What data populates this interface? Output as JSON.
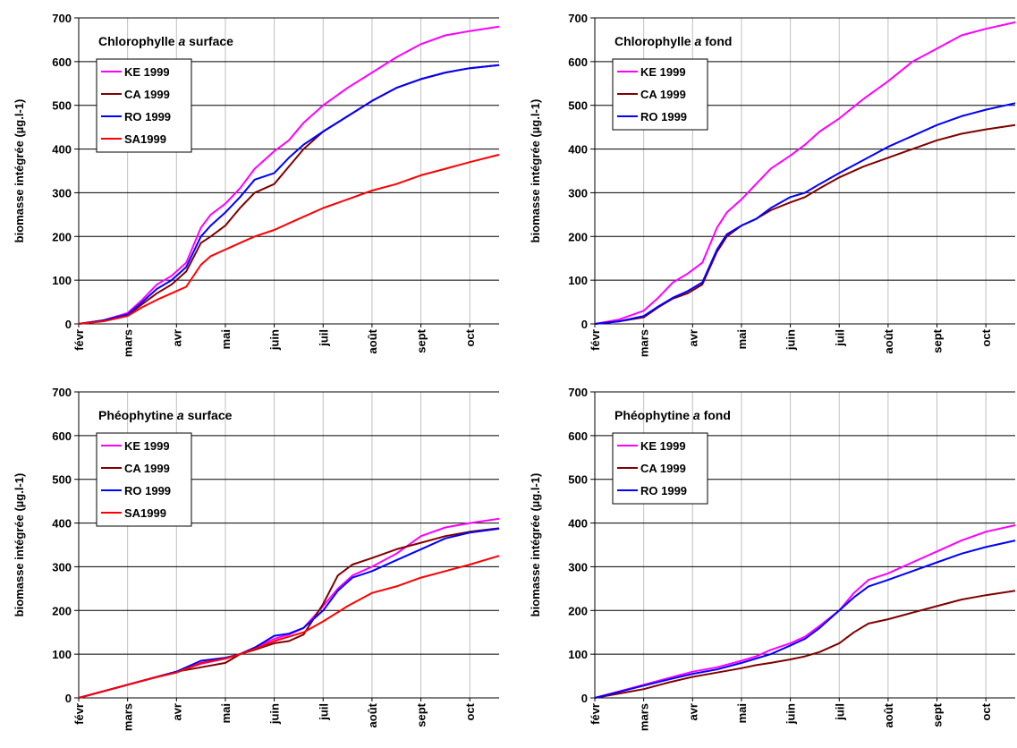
{
  "chart_data": [
    {
      "type": "line",
      "title_prefix": "Chlorophylle ",
      "title_italic": "a",
      "title_suffix": " surface",
      "ylabel": "biomasse intégrée (µg.l-1)",
      "ylim": [
        0,
        700
      ],
      "yticks": [
        0,
        100,
        200,
        300,
        400,
        500,
        600,
        700
      ],
      "xlim": [
        0,
        8.6
      ],
      "categories": [
        "févr",
        "mars",
        "avr",
        "mai",
        "juin",
        "juil",
        "août",
        "sept",
        "oct"
      ],
      "legend_position": "top-left",
      "series": [
        {
          "name": "KE 1999",
          "color": "#ff00ff",
          "x": [
            0,
            0.5,
            1,
            1.3,
            1.6,
            1.9,
            2.2,
            2.5,
            2.7,
            3,
            3.3,
            3.6,
            4,
            4.3,
            4.6,
            5,
            5.5,
            6,
            6.5,
            7,
            7.5,
            8,
            8.6
          ],
          "values": [
            0,
            8,
            25,
            55,
            90,
            110,
            140,
            220,
            250,
            275,
            310,
            355,
            395,
            420,
            460,
            500,
            540,
            575,
            610,
            640,
            660,
            670,
            680
          ]
        },
        {
          "name": "CA 1999",
          "color": "#800000",
          "x": [
            0,
            0.5,
            1,
            1.3,
            1.6,
            1.9,
            2.2,
            2.5,
            2.7,
            3,
            3.3,
            3.6,
            4,
            4.3,
            4.6,
            5,
            5.5,
            6,
            6.5,
            7,
            7.5,
            8,
            8.6
          ],
          "values": [
            0,
            8,
            20,
            45,
            70,
            90,
            120,
            185,
            200,
            225,
            265,
            300,
            320,
            360,
            400,
            440,
            475,
            510,
            540,
            560,
            575,
            585,
            592
          ]
        },
        {
          "name": "RO 1999",
          "color": "#0000ff",
          "x": [
            0,
            0.5,
            1,
            1.3,
            1.6,
            1.9,
            2.2,
            2.5,
            2.7,
            3,
            3.3,
            3.6,
            4,
            4.3,
            4.6,
            5,
            5.5,
            6,
            6.5,
            7,
            7.5,
            8,
            8.6
          ],
          "values": [
            0,
            8,
            22,
            50,
            80,
            100,
            130,
            200,
            225,
            255,
            290,
            330,
            345,
            380,
            410,
            440,
            475,
            510,
            540,
            560,
            575,
            585,
            592
          ]
        },
        {
          "name": "SA1999",
          "color": "#ff0000",
          "x": [
            0,
            0.5,
            1,
            1.3,
            1.6,
            1.9,
            2.2,
            2.5,
            2.7,
            3,
            3.3,
            3.6,
            4,
            4.5,
            5,
            5.5,
            6,
            6.5,
            7,
            7.5,
            8,
            8.6
          ],
          "values": [
            0,
            6,
            18,
            38,
            55,
            70,
            85,
            135,
            155,
            170,
            185,
            200,
            215,
            240,
            265,
            285,
            305,
            320,
            340,
            355,
            370,
            387
          ]
        }
      ]
    },
    {
      "type": "line",
      "title_prefix": "Chlorophylle ",
      "title_italic": "a",
      "title_suffix": " fond",
      "ylabel": "biomasse intégrée (µg.l-1)",
      "ylim": [
        0,
        700
      ],
      "yticks": [
        0,
        100,
        200,
        300,
        400,
        500,
        600,
        700
      ],
      "xlim": [
        0,
        8.6
      ],
      "categories": [
        "févr",
        "mars",
        "avr",
        "mai",
        "juin",
        "juil",
        "août",
        "sept",
        "oct"
      ],
      "legend_position": "top-left",
      "series": [
        {
          "name": "KE 1999",
          "color": "#ff00ff",
          "x": [
            0,
            0.5,
            1,
            1.3,
            1.6,
            1.9,
            2.2,
            2.5,
            2.7,
            3,
            3.3,
            3.6,
            4,
            4.3,
            4.6,
            5,
            5.5,
            6,
            6.5,
            7,
            7.5,
            8,
            8.6
          ],
          "values": [
            0,
            10,
            30,
            60,
            95,
            115,
            140,
            220,
            255,
            285,
            320,
            355,
            385,
            410,
            440,
            470,
            515,
            555,
            600,
            630,
            660,
            675,
            690
          ]
        },
        {
          "name": "CA 1999",
          "color": "#800000",
          "x": [
            0,
            0.5,
            1,
            1.3,
            1.6,
            1.9,
            2.2,
            2.5,
            2.7,
            3,
            3.3,
            3.6,
            4,
            4.3,
            4.6,
            5,
            5.5,
            6,
            6.5,
            7,
            7.5,
            8,
            8.6
          ],
          "values": [
            0,
            6,
            15,
            38,
            58,
            70,
            90,
            165,
            200,
            225,
            240,
            260,
            278,
            290,
            310,
            335,
            360,
            380,
            400,
            420,
            435,
            445,
            455
          ]
        },
        {
          "name": "RO 1999",
          "color": "#0000ff",
          "x": [
            0,
            0.5,
            1,
            1.3,
            1.6,
            1.9,
            2.2,
            2.5,
            2.7,
            3,
            3.3,
            3.6,
            4,
            4.3,
            4.6,
            5,
            5.5,
            6,
            6.5,
            7,
            7.5,
            8,
            8.6
          ],
          "values": [
            0,
            6,
            18,
            40,
            60,
            75,
            95,
            170,
            205,
            225,
            240,
            265,
            290,
            300,
            320,
            345,
            375,
            405,
            430,
            455,
            475,
            490,
            505
          ]
        }
      ]
    },
    {
      "type": "line",
      "title_prefix": "Phéophytine ",
      "title_italic": "a",
      "title_suffix": " surface",
      "ylabel": "biomasse intégrée (µg.l-1)",
      "ylim": [
        0,
        700
      ],
      "yticks": [
        0,
        100,
        200,
        300,
        400,
        500,
        600,
        700
      ],
      "xlim": [
        0,
        8.6
      ],
      "categories": [
        "févr",
        "mars",
        "avr",
        "mai",
        "juin",
        "juil",
        "août",
        "sept",
        "oct"
      ],
      "legend_position": "top-left",
      "series": [
        {
          "name": "KE 1999",
          "color": "#ff00ff",
          "x": [
            0,
            0.5,
            1,
            1.5,
            2,
            2.5,
            3,
            3.3,
            3.6,
            4,
            4.3,
            4.6,
            5,
            5.3,
            5.6,
            6,
            6.5,
            7,
            7.5,
            8,
            8.6
          ],
          "values": [
            0,
            15,
            30,
            45,
            60,
            78,
            90,
            100,
            115,
            135,
            145,
            160,
            210,
            250,
            280,
            300,
            330,
            370,
            390,
            400,
            410
          ]
        },
        {
          "name": "CA 1999",
          "color": "#800000",
          "x": [
            0,
            0.5,
            1,
            1.5,
            2,
            2.5,
            3,
            3.3,
            3.6,
            4,
            4.3,
            4.6,
            5,
            5.3,
            5.6,
            6,
            6.5,
            7,
            7.5,
            8,
            8.6
          ],
          "values": [
            0,
            15,
            30,
            45,
            60,
            70,
            80,
            100,
            110,
            125,
            130,
            145,
            215,
            280,
            305,
            320,
            340,
            355,
            370,
            380,
            388
          ]
        },
        {
          "name": "RO 1999",
          "color": "#0000ff",
          "x": [
            0,
            0.5,
            1,
            1.5,
            2,
            2.5,
            3,
            3.3,
            3.6,
            4,
            4.3,
            4.6,
            5,
            5.3,
            5.6,
            6,
            6.5,
            7,
            7.5,
            8,
            8.6
          ],
          "values": [
            0,
            15,
            30,
            45,
            60,
            85,
            92,
            100,
            115,
            142,
            147,
            160,
            200,
            245,
            275,
            290,
            315,
            340,
            365,
            378,
            387
          ]
        },
        {
          "name": "SA1999",
          "color": "#ff0000",
          "x": [
            0,
            0.5,
            1,
            1.5,
            2,
            2.5,
            3,
            3.3,
            3.6,
            4,
            4.3,
            4.6,
            5,
            5.5,
            6,
            6.5,
            7,
            7.5,
            8,
            8.6
          ],
          "values": [
            0,
            15,
            30,
            45,
            58,
            80,
            90,
            100,
            112,
            130,
            140,
            150,
            175,
            210,
            240,
            255,
            275,
            290,
            305,
            325
          ]
        }
      ]
    },
    {
      "type": "line",
      "title_prefix": "Phéophytine ",
      "title_italic": "a",
      "title_suffix": " fond",
      "ylabel": "biomasse intégrée (µg.l-1)",
      "ylim": [
        0,
        700
      ],
      "yticks": [
        0,
        100,
        200,
        300,
        400,
        500,
        600,
        700
      ],
      "xlim": [
        0,
        8.6
      ],
      "categories": [
        "févr",
        "mars",
        "avr",
        "mai",
        "juin",
        "juil",
        "août",
        "sept",
        "oct"
      ],
      "legend_position": "top-left",
      "series": [
        {
          "name": "KE 1999",
          "color": "#ff00ff",
          "x": [
            0,
            0.5,
            1,
            1.5,
            2,
            2.5,
            3,
            3.3,
            3.6,
            4,
            4.3,
            4.6,
            5,
            5.3,
            5.6,
            6,
            6.5,
            7,
            7.5,
            8,
            8.6
          ],
          "values": [
            0,
            15,
            30,
            45,
            60,
            70,
            85,
            95,
            110,
            125,
            140,
            165,
            200,
            240,
            270,
            285,
            310,
            335,
            360,
            380,
            395
          ]
        },
        {
          "name": "CA 1999",
          "color": "#800000",
          "x": [
            0,
            0.5,
            1,
            1.5,
            2,
            2.5,
            3,
            3.3,
            3.6,
            4,
            4.3,
            4.6,
            5,
            5.3,
            5.6,
            6,
            6.5,
            7,
            7.5,
            8,
            8.6
          ],
          "values": [
            0,
            10,
            20,
            35,
            48,
            58,
            68,
            75,
            80,
            88,
            95,
            105,
            125,
            150,
            170,
            180,
            195,
            210,
            225,
            235,
            245
          ]
        },
        {
          "name": "RO 1999",
          "color": "#0000ff",
          "x": [
            0,
            0.5,
            1,
            1.5,
            2,
            2.5,
            3,
            3.3,
            3.6,
            4,
            4.3,
            4.6,
            5,
            5.3,
            5.6,
            6,
            6.5,
            7,
            7.5,
            8,
            8.6
          ],
          "values": [
            0,
            14,
            28,
            42,
            55,
            65,
            80,
            90,
            100,
            120,
            135,
            160,
            200,
            230,
            255,
            270,
            290,
            310,
            330,
            345,
            360
          ]
        }
      ]
    }
  ]
}
